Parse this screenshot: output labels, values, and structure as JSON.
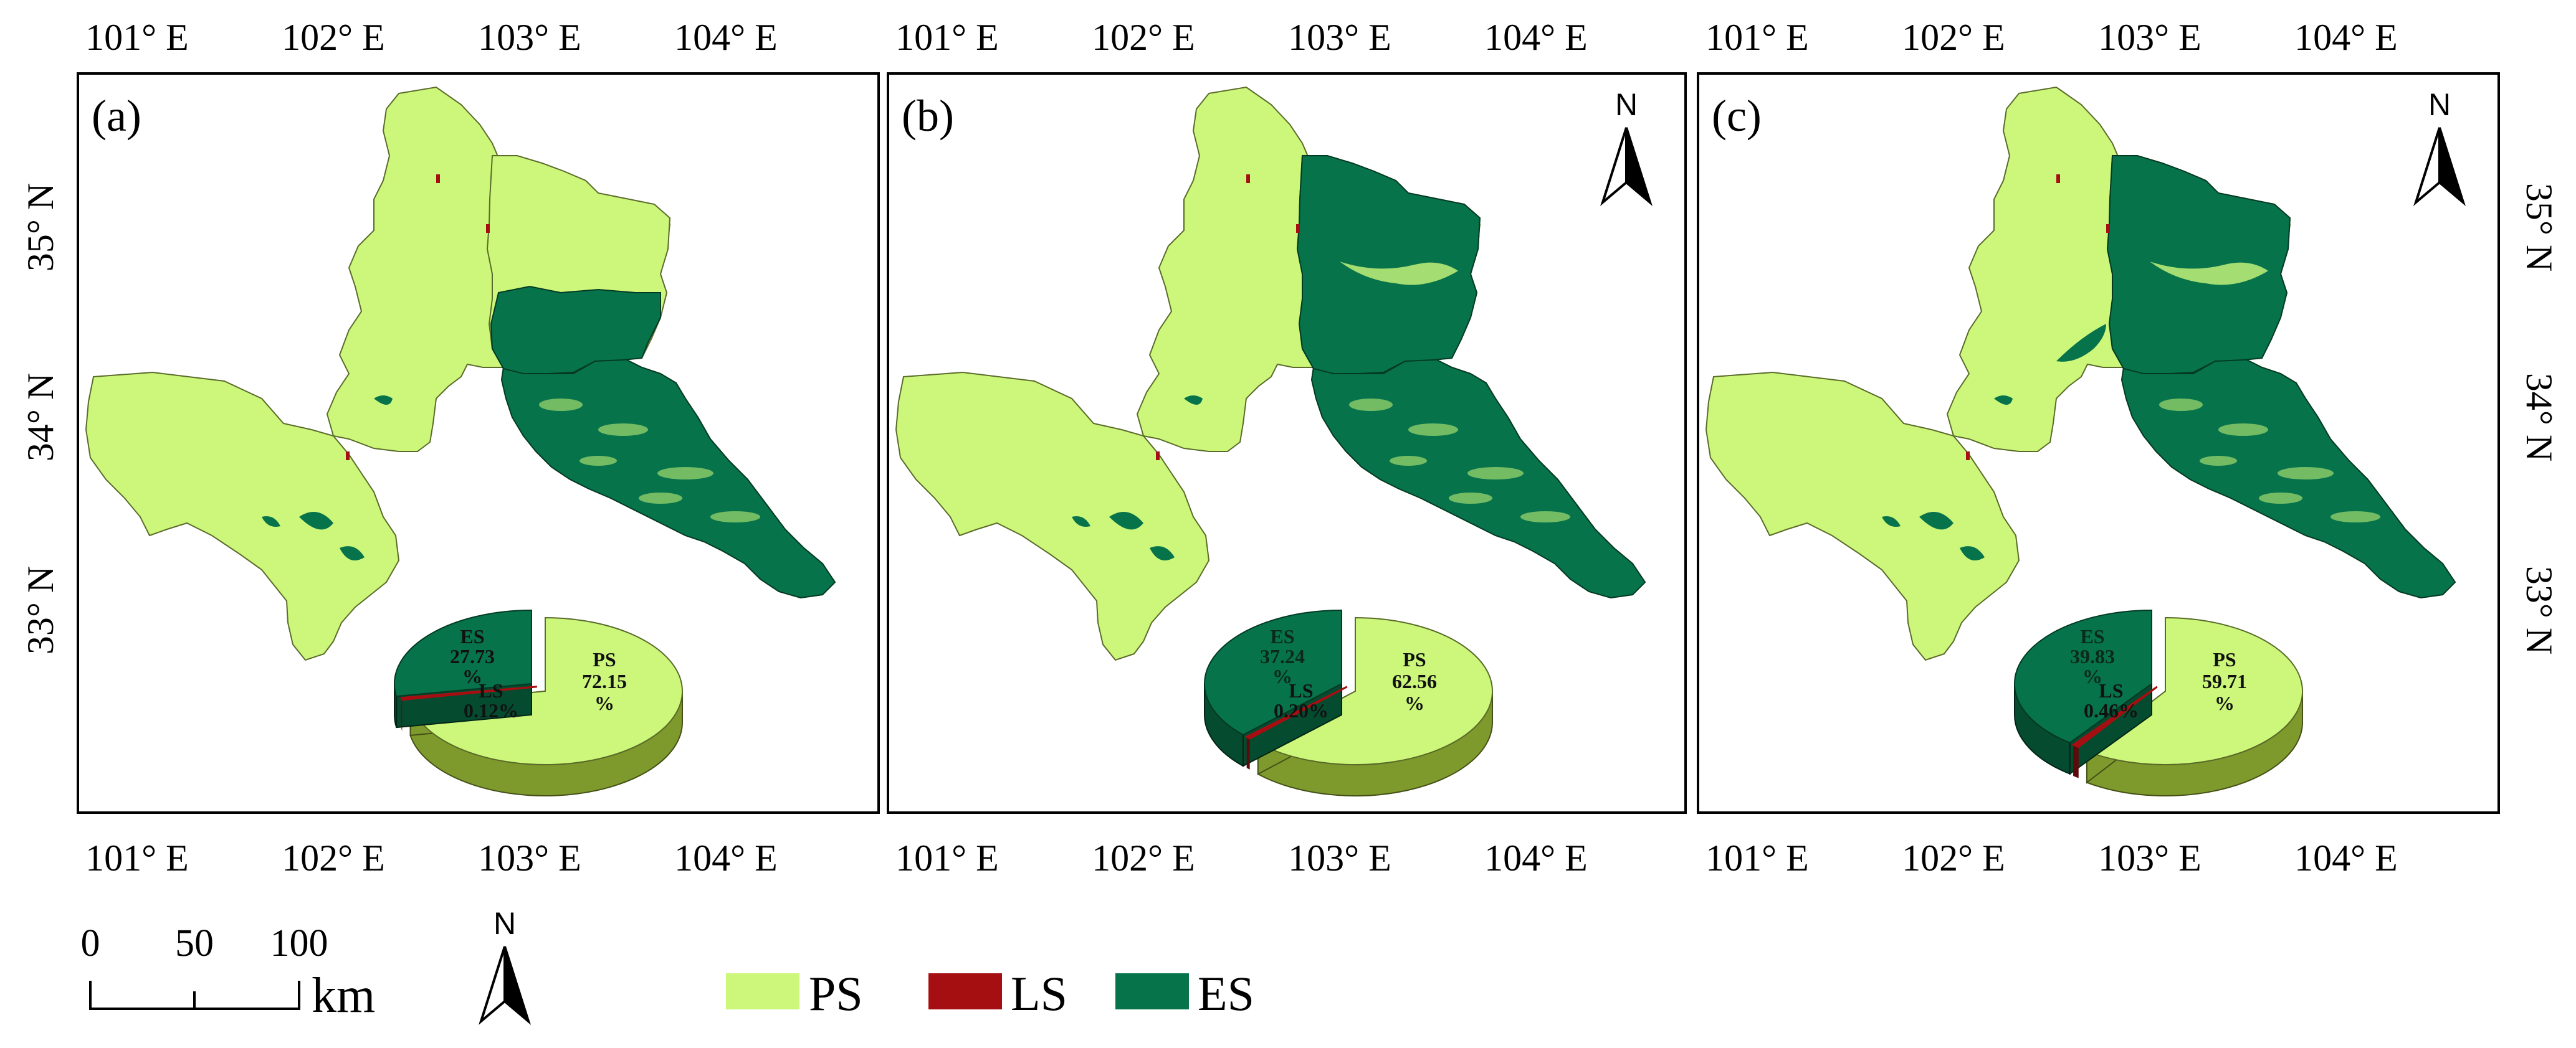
{
  "colors": {
    "PS": "#ccf77a",
    "LS": "#a50f12",
    "ES": "#07734b",
    "PS_side": "#7f9a2c",
    "LS_side": "#5d0a0a",
    "ES_side": "#044b30"
  },
  "panels": [
    {
      "label": "(a)",
      "show_north": false,
      "x_ticks": [
        "101° E",
        "102° E",
        "103° E",
        "104° E"
      ],
      "pie": {
        "ps_value": 72.15,
        "ls_value": 0.12,
        "es_value": 27.73,
        "ps_text": [
          "PS",
          "72.15",
          "%"
        ],
        "ls_text": [
          "LS",
          "0.12%"
        ],
        "es_text": [
          "ES",
          "27.73",
          "%"
        ]
      }
    },
    {
      "label": "(b)",
      "show_north": true,
      "x_ticks": [
        "101° E",
        "102° E",
        "103° E",
        "104° E"
      ],
      "pie": {
        "ps_value": 62.56,
        "ls_value": 0.2,
        "es_value": 37.24,
        "ps_text": [
          "PS",
          "62.56",
          "%"
        ],
        "ls_text": [
          "LS",
          "0.20%"
        ],
        "es_text": [
          "ES",
          "37.24",
          "%"
        ]
      }
    },
    {
      "label": "(c)",
      "show_north": true,
      "x_ticks": [
        "101° E",
        "102° E",
        "103° E",
        "104° E"
      ],
      "pie": {
        "ps_value": 59.71,
        "ls_value": 0.46,
        "es_value": 39.83,
        "ps_text": [
          "PS",
          "59.71",
          "%"
        ],
        "ls_text": [
          "LS",
          "0.46%"
        ],
        "es_text": [
          "ES",
          "39.83",
          "%"
        ]
      }
    }
  ],
  "y_ticks_left": [
    "35° N",
    "34° N",
    "33° N"
  ],
  "y_ticks_right": [
    "35° N",
    "34° N",
    "33° N"
  ],
  "north_letter": "N",
  "scale_bar": {
    "ticks": [
      "0",
      "50",
      "100"
    ],
    "unit": "km"
  },
  "legend": [
    {
      "key": "PS",
      "label": "PS"
    },
    {
      "key": "LS",
      "label": "LS"
    },
    {
      "key": "ES",
      "label": "ES"
    }
  ]
}
